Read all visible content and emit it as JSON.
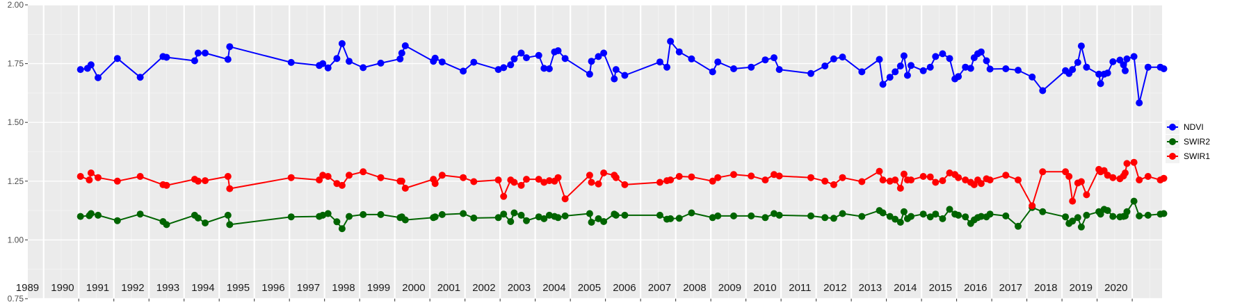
{
  "chart_data": {
    "type": "line",
    "title": "",
    "xlabel": "",
    "ylabel": "",
    "ylim": [
      0.75,
      2.0
    ],
    "y_ticks": [
      "0.75",
      "1.00",
      "1.25",
      "1.50",
      "1.75",
      "2.00"
    ],
    "x_range": [
      1988.55,
      2020.85
    ],
    "year_labels": [
      "1989",
      "1990",
      "1991",
      "1992",
      "1993",
      "1994",
      "1995",
      "1996",
      "1997",
      "1998",
      "1999",
      "2000",
      "2001",
      "2002",
      "2003",
      "2004",
      "2005",
      "2006",
      "2007",
      "2008",
      "2009",
      "2010",
      "2011",
      "2012",
      "2013",
      "2014",
      "2015",
      "2016",
      "2017",
      "2018",
      "2019",
      "2020"
    ],
    "grid": true,
    "legend_position": "right",
    "series": [
      {
        "name": "NDVI",
        "color": "#0000ff",
        "x": [
          1990.05,
          1990.25,
          1990.35,
          1990.55,
          1991.1,
          1991.75,
          1992.4,
          1992.5,
          1993.3,
          1993.4,
          1993.6,
          1994.25,
          1994.3,
          1996.05,
          1996.85,
          1996.95,
          1997.1,
          1997.35,
          1997.5,
          1997.7,
          1998.1,
          1998.6,
          1999.15,
          1999.2,
          1999.3,
          2000.1,
          2000.15,
          2000.35,
          2000.95,
          2001.25,
          2001.95,
          2002.1,
          2002.3,
          2002.4,
          2002.6,
          2002.75,
          2003.1,
          2003.25,
          2003.4,
          2003.55,
          2003.65,
          2003.85,
          2004.55,
          2004.6,
          2004.8,
          2004.95,
          2005.25,
          2005.3,
          2005.55,
          2006.55,
          2006.75,
          2006.85,
          2007.1,
          2007.45,
          2008.05,
          2008.2,
          2008.65,
          2009.15,
          2009.55,
          2009.8,
          2009.95,
          2010.85,
          2011.25,
          2011.5,
          2011.75,
          2012.3,
          2012.8,
          2012.9,
          2013.1,
          2013.25,
          2013.4,
          2013.5,
          2013.6,
          2013.7,
          2014.05,
          2014.25,
          2014.4,
          2014.6,
          2014.8,
          2014.95,
          2015.05,
          2015.25,
          2015.4,
          2015.5,
          2015.6,
          2015.7,
          2015.85,
          2015.95,
          2016.4,
          2016.75,
          2017.15,
          2017.45,
          2018.1,
          2018.2,
          2018.3,
          2018.45,
          2018.55,
          2018.7,
          2019.05,
          2019.1,
          2019.2,
          2019.3,
          2019.45,
          2019.65,
          2019.75,
          2019.8,
          2019.85,
          2020.05,
          2020.2,
          2020.45,
          2020.8,
          2020.9
        ],
        "values": [
          1.725,
          1.73,
          1.745,
          1.69,
          1.772,
          1.692,
          1.78,
          1.777,
          1.762,
          1.795,
          1.795,
          1.768,
          1.822,
          1.755,
          1.742,
          1.75,
          1.732,
          1.772,
          1.835,
          1.76,
          1.733,
          1.752,
          1.77,
          1.795,
          1.826,
          1.76,
          1.773,
          1.757,
          1.718,
          1.756,
          1.725,
          1.733,
          1.745,
          1.77,
          1.795,
          1.775,
          1.785,
          1.73,
          1.728,
          1.8,
          1.805,
          1.772,
          1.705,
          1.76,
          1.78,
          1.795,
          1.685,
          1.725,
          1.7,
          1.757,
          1.735,
          1.845,
          1.8,
          1.77,
          1.715,
          1.757,
          1.728,
          1.735,
          1.766,
          1.775,
          1.725,
          1.708,
          1.74,
          1.77,
          1.778,
          1.715,
          1.768,
          1.662,
          1.692,
          1.715,
          1.74,
          1.783,
          1.7,
          1.742,
          1.72,
          1.735,
          1.78,
          1.792,
          1.772,
          1.685,
          1.695,
          1.735,
          1.73,
          1.775,
          1.792,
          1.8,
          1.762,
          1.727,
          1.728,
          1.722,
          1.693,
          1.635,
          1.72,
          1.708,
          1.725,
          1.755,
          1.825,
          1.735,
          1.705,
          1.665,
          1.705,
          1.71,
          1.758,
          1.765,
          1.745,
          1.72,
          1.77,
          1.78,
          1.583,
          1.735,
          1.735,
          1.728
        ]
      },
      {
        "name": "SWIR2",
        "color": "#006400",
        "x": [
          1990.05,
          1990.3,
          1990.35,
          1990.55,
          1991.1,
          1991.75,
          1992.4,
          1992.5,
          1993.3,
          1993.4,
          1993.6,
          1994.25,
          1994.3,
          1996.05,
          1996.85,
          1996.95,
          1997.1,
          1997.35,
          1997.5,
          1997.7,
          1998.1,
          1998.6,
          1999.15,
          1999.2,
          1999.3,
          2000.1,
          2000.15,
          2000.35,
          2000.95,
          2001.25,
          2001.95,
          2002.1,
          2002.3,
          2002.4,
          2002.6,
          2002.75,
          2003.1,
          2003.25,
          2003.4,
          2003.55,
          2003.65,
          2003.85,
          2004.55,
          2004.6,
          2004.8,
          2004.95,
          2005.25,
          2005.3,
          2005.55,
          2006.55,
          2006.75,
          2006.85,
          2007.1,
          2007.45,
          2008.05,
          2008.2,
          2008.65,
          2009.15,
          2009.55,
          2009.8,
          2009.95,
          2010.85,
          2011.25,
          2011.5,
          2011.75,
          2012.3,
          2012.8,
          2012.9,
          2013.1,
          2013.25,
          2013.4,
          2013.5,
          2013.6,
          2013.7,
          2014.05,
          2014.25,
          2014.4,
          2014.6,
          2014.8,
          2014.95,
          2015.05,
          2015.25,
          2015.4,
          2015.5,
          2015.6,
          2015.7,
          2015.85,
          2015.95,
          2016.4,
          2016.75,
          2017.15,
          2017.45,
          2018.1,
          2018.2,
          2018.3,
          2018.45,
          2018.55,
          2018.7,
          2019.05,
          2019.1,
          2019.2,
          2019.3,
          2019.45,
          2019.65,
          2019.75,
          2019.8,
          2019.85,
          2020.05,
          2020.2,
          2020.45,
          2020.8,
          2020.9
        ],
        "values": [
          1.1,
          1.103,
          1.112,
          1.105,
          1.082,
          1.11,
          1.078,
          1.065,
          1.105,
          1.093,
          1.072,
          1.105,
          1.065,
          1.098,
          1.1,
          1.105,
          1.112,
          1.077,
          1.048,
          1.1,
          1.108,
          1.108,
          1.095,
          1.098,
          1.085,
          1.095,
          1.098,
          1.108,
          1.112,
          1.093,
          1.095,
          1.11,
          1.078,
          1.115,
          1.105,
          1.082,
          1.098,
          1.09,
          1.105,
          1.1,
          1.095,
          1.102,
          1.112,
          1.075,
          1.09,
          1.078,
          1.11,
          1.105,
          1.105,
          1.105,
          1.088,
          1.09,
          1.092,
          1.115,
          1.095,
          1.102,
          1.102,
          1.102,
          1.095,
          1.112,
          1.105,
          1.102,
          1.095,
          1.092,
          1.112,
          1.1,
          1.125,
          1.115,
          1.1,
          1.088,
          1.075,
          1.12,
          1.09,
          1.1,
          1.11,
          1.098,
          1.11,
          1.09,
          1.13,
          1.11,
          1.105,
          1.098,
          1.07,
          1.085,
          1.095,
          1.1,
          1.098,
          1.11,
          1.102,
          1.058,
          1.138,
          1.12,
          1.098,
          1.07,
          1.08,
          1.095,
          1.055,
          1.105,
          1.12,
          1.11,
          1.13,
          1.125,
          1.1,
          1.098,
          1.1,
          1.102,
          1.12,
          1.165,
          1.102,
          1.105,
          1.11,
          1.112
        ]
      },
      {
        "name": "SWIR1",
        "color": "#ff0000",
        "x": [
          1990.05,
          1990.3,
          1990.35,
          1990.55,
          1991.1,
          1991.75,
          1992.4,
          1992.5,
          1993.3,
          1993.4,
          1993.6,
          1994.25,
          1994.3,
          1996.05,
          1996.85,
          1996.95,
          1997.1,
          1997.35,
          1997.5,
          1997.7,
          1998.1,
          1998.6,
          1999.15,
          1999.2,
          1999.3,
          2000.1,
          2000.15,
          2000.35,
          2000.95,
          2001.25,
          2001.95,
          2002.1,
          2002.3,
          2002.4,
          2002.6,
          2002.75,
          2003.1,
          2003.25,
          2003.4,
          2003.55,
          2003.65,
          2003.85,
          2004.55,
          2004.6,
          2004.8,
          2004.95,
          2005.25,
          2005.3,
          2005.55,
          2006.55,
          2006.75,
          2006.85,
          2007.1,
          2007.45,
          2008.05,
          2008.2,
          2008.65,
          2009.15,
          2009.55,
          2009.8,
          2009.95,
          2010.85,
          2011.25,
          2011.5,
          2011.75,
          2012.3,
          2012.8,
          2012.9,
          2013.1,
          2013.25,
          2013.4,
          2013.5,
          2013.6,
          2013.7,
          2014.05,
          2014.25,
          2014.4,
          2014.6,
          2014.8,
          2014.95,
          2015.05,
          2015.25,
          2015.4,
          2015.5,
          2015.6,
          2015.7,
          2015.85,
          2015.95,
          2016.4,
          2016.75,
          2017.15,
          2017.45,
          2018.1,
          2018.2,
          2018.3,
          2018.45,
          2018.55,
          2018.7,
          2019.05,
          2019.1,
          2019.2,
          2019.3,
          2019.45,
          2019.65,
          2019.75,
          2019.8,
          2019.85,
          2020.05,
          2020.2,
          2020.45,
          2020.8,
          2020.9
        ],
        "values": [
          1.27,
          1.255,
          1.285,
          1.265,
          1.25,
          1.27,
          1.235,
          1.232,
          1.258,
          1.25,
          1.252,
          1.27,
          1.218,
          1.265,
          1.255,
          1.275,
          1.27,
          1.24,
          1.232,
          1.275,
          1.29,
          1.265,
          1.25,
          1.25,
          1.22,
          1.258,
          1.24,
          1.275,
          1.265,
          1.248,
          1.255,
          1.185,
          1.255,
          1.245,
          1.232,
          1.258,
          1.258,
          1.245,
          1.252,
          1.25,
          1.265,
          1.175,
          1.275,
          1.245,
          1.238,
          1.285,
          1.275,
          1.265,
          1.235,
          1.245,
          1.252,
          1.255,
          1.27,
          1.268,
          1.25,
          1.265,
          1.278,
          1.272,
          1.255,
          1.278,
          1.272,
          1.265,
          1.25,
          1.235,
          1.265,
          1.248,
          1.292,
          1.255,
          1.25,
          1.255,
          1.22,
          1.28,
          1.255,
          1.255,
          1.27,
          1.268,
          1.245,
          1.252,
          1.285,
          1.278,
          1.265,
          1.255,
          1.245,
          1.235,
          1.255,
          1.24,
          1.26,
          1.255,
          1.275,
          1.255,
          1.145,
          1.29,
          1.29,
          1.27,
          1.165,
          1.242,
          1.248,
          1.192,
          1.3,
          1.29,
          1.295,
          1.275,
          1.265,
          1.26,
          1.272,
          1.285,
          1.325,
          1.33,
          1.255,
          1.27,
          1.255,
          1.262
        ]
      }
    ]
  }
}
